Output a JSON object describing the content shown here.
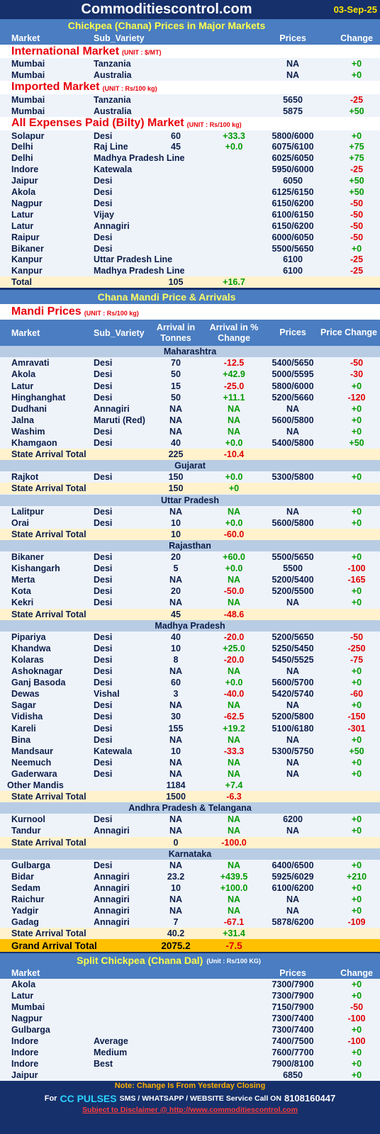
{
  "header": {
    "site": "Commoditiescontrol.com",
    "date": "03-Sep-25"
  },
  "major": {
    "title": "Chickpea (Chana) Prices in Major Markets",
    "columns": [
      "Market",
      "Sub_Variety",
      "Prices",
      "Change"
    ],
    "groups": [
      {
        "name": "International Market",
        "unit": "(UNIT : $/MT)",
        "rows": [
          {
            "m": "Mumbai",
            "v": "Tanzania",
            "p": "NA",
            "c": "+0"
          },
          {
            "m": "Mumbai",
            "v": "Australia",
            "p": "NA",
            "c": "+0"
          }
        ]
      },
      {
        "name": "Imported Market",
        "unit": "(UNIT : Rs/100 kg)",
        "rows": [
          {
            "m": "Mumbai",
            "v": "Tanzania",
            "p": "5650",
            "c": "-25"
          },
          {
            "m": "Mumbai",
            "v": "Australia",
            "p": "5875",
            "c": "+50"
          }
        ]
      },
      {
        "name": "All Expenses Paid (Bilty) Market",
        "unit": "(UNIT : Rs/100 kg)",
        "rows": [
          {
            "m": "Solapur",
            "v": "Desi",
            "a": "60",
            "ac": "+33.3",
            "p": "5800/6000",
            "c": "+0"
          },
          {
            "m": "Delhi",
            "v": "Raj Line",
            "a": "45",
            "ac": "+0.0",
            "p": "6075/6100",
            "c": "+75"
          },
          {
            "m": "Delhi",
            "v": "Madhya Pradesh Line",
            "p": "6025/6050",
            "c": "+75"
          },
          {
            "m": "Indore",
            "v": "Katewala",
            "p": "5950/6000",
            "c": "-25"
          },
          {
            "m": "Jaipur",
            "v": "Desi",
            "p": "6050",
            "c": "+50"
          },
          {
            "m": "Akola",
            "v": "Desi",
            "p": "6125/6150",
            "c": "+50"
          },
          {
            "m": "Nagpur",
            "v": "Desi",
            "p": "6150/6200",
            "c": "-50"
          },
          {
            "m": "Latur",
            "v": "Vijay",
            "p": "6100/6150",
            "c": "-50"
          },
          {
            "m": "Latur",
            "v": "Annagiri",
            "p": "6150/6200",
            "c": "-50"
          },
          {
            "m": "Raipur",
            "v": "Desi",
            "p": "6000/6050",
            "c": "-50"
          },
          {
            "m": "Bikaner",
            "v": "Desi",
            "p": "5500/5650",
            "c": "+0"
          },
          {
            "m": "Kanpur",
            "v": "Uttar Pradesh Line",
            "p": "6100",
            "c": "-25"
          },
          {
            "m": "Kanpur",
            "v": "Madhya Pradesh Line",
            "p": "6100",
            "c": "-25"
          }
        ],
        "total": {
          "m": "Total",
          "a": "105",
          "ac": "+16.7"
        }
      }
    ]
  },
  "mandi": {
    "title": "Chana Mandi Price & Arrivals",
    "heading": "Mandi Prices",
    "unit": "(UNIT : Rs/100 kg)",
    "columns": [
      "Market",
      "Sub_Variety",
      "Arrival in Tonnes",
      "Arrival in % Change",
      "Prices",
      "Price Change"
    ],
    "states": [
      {
        "name": "Maharashtra",
        "rows": [
          {
            "m": "Amravati",
            "v": "Desi",
            "a": "70",
            "ac": "-12.5",
            "p": "5400/5650",
            "c": "-50"
          },
          {
            "m": "Akola",
            "v": "Desi",
            "a": "50",
            "ac": "+42.9",
            "p": "5000/5595",
            "c": "-30"
          },
          {
            "m": "Latur",
            "v": "Desi",
            "a": "15",
            "ac": "-25.0",
            "p": "5800/6000",
            "c": "+0"
          },
          {
            "m": "Hinghanghat",
            "v": "Desi",
            "a": "50",
            "ac": "+11.1",
            "p": "5200/5660",
            "c": "-120"
          },
          {
            "m": "Dudhani",
            "v": "Annagiri",
            "a": "NA",
            "ac": "NA",
            "p": "NA",
            "c": "+0"
          },
          {
            "m": "Jalna",
            "v": "Maruti (Red)",
            "a": "NA",
            "ac": "NA",
            "p": "5600/5800",
            "c": "+0"
          },
          {
            "m": "Washim",
            "v": "Desi",
            "a": "NA",
            "ac": "NA",
            "p": "NA",
            "c": "+0"
          },
          {
            "m": "Khamgaon",
            "v": "Desi",
            "a": "40",
            "ac": "+0.0",
            "p": "5400/5800",
            "c": "+50"
          }
        ],
        "total": {
          "m": "State Arrival Total",
          "a": "225",
          "ac": "-10.4"
        }
      },
      {
        "name": "Gujarat",
        "rows": [
          {
            "m": "Rajkot",
            "v": "Desi",
            "a": "150",
            "ac": "+0.0",
            "p": "5300/5800",
            "c": "+0"
          }
        ],
        "total": {
          "m": "State Arrival Total",
          "a": "150",
          "ac": "+0"
        }
      },
      {
        "name": "Uttar Pradesh",
        "rows": [
          {
            "m": "Lalitpur",
            "v": "Desi",
            "a": "NA",
            "ac": "NA",
            "p": "NA",
            "c": "+0"
          },
          {
            "m": "Orai",
            "v": "Desi",
            "a": "10",
            "ac": "+0.0",
            "p": "5600/5800",
            "c": "+0"
          }
        ],
        "total": {
          "m": "State Arrival Total",
          "a": "10",
          "ac": "-60.0"
        }
      },
      {
        "name": "Rajasthan",
        "rows": [
          {
            "m": "Bikaner",
            "v": "Desi",
            "a": "20",
            "ac": "+60.0",
            "p": "5500/5650",
            "c": "+0"
          },
          {
            "m": "Kishangarh",
            "v": "Desi",
            "a": "5",
            "ac": "+0.0",
            "p": "5500",
            "c": "-100"
          },
          {
            "m": "Merta",
            "v": "Desi",
            "a": "NA",
            "ac": "NA",
            "p": "5200/5400",
            "c": "-165"
          },
          {
            "m": "Kota",
            "v": "Desi",
            "a": "20",
            "ac": "-50.0",
            "p": "5200/5500",
            "c": "+0"
          },
          {
            "m": "Kekri",
            "v": "Desi",
            "a": "NA",
            "ac": "NA",
            "p": "NA",
            "c": "+0"
          }
        ],
        "total": {
          "m": "State Arrival Total",
          "a": "45",
          "ac": "-48.6"
        }
      },
      {
        "name": "Madhya Pradesh",
        "rows": [
          {
            "m": "Pipariya",
            "v": "Desi",
            "a": "40",
            "ac": "-20.0",
            "p": "5200/5650",
            "c": "-50"
          },
          {
            "m": "Khandwa",
            "v": "Desi",
            "a": "10",
            "ac": "+25.0",
            "p": "5250/5450",
            "c": "-250"
          },
          {
            "m": "Kolaras",
            "v": "Desi",
            "a": "8",
            "ac": "-20.0",
            "p": "5450/5525",
            "c": "-75"
          },
          {
            "m": "Ashoknagar",
            "v": "Desi",
            "a": "NA",
            "ac": "NA",
            "p": "NA",
            "c": "+0"
          },
          {
            "m": "Ganj Basoda",
            "v": "Desi",
            "a": "60",
            "ac": "+0.0",
            "p": "5600/5700",
            "c": "+0"
          },
          {
            "m": "Dewas",
            "v": "Vishal",
            "a": "3",
            "ac": "-40.0",
            "p": "5420/5740",
            "c": "-60"
          },
          {
            "m": "Sagar",
            "v": "Desi",
            "a": "NA",
            "ac": "NA",
            "p": "NA",
            "c": "+0"
          },
          {
            "m": "Vidisha",
            "v": "Desi",
            "a": "30",
            "ac": "-62.5",
            "p": "5200/5800",
            "c": "-150"
          },
          {
            "m": "Kareli",
            "v": "Desi",
            "a": "155",
            "ac": "+19.2",
            "p": "5100/6180",
            "c": "-301"
          },
          {
            "m": "Bina",
            "v": "Desi",
            "a": "NA",
            "ac": "NA",
            "p": "NA",
            "c": "+0"
          },
          {
            "m": "Mandsaur",
            "v": "Katewala",
            "a": "10",
            "ac": "-33.3",
            "p": "5300/5750",
            "c": "+50"
          },
          {
            "m": "Neemuch",
            "v": "Desi",
            "a": "NA",
            "ac": "NA",
            "p": "NA",
            "c": "+0"
          },
          {
            "m": "Gaderwara",
            "v": "Desi",
            "a": "NA",
            "ac": "NA",
            "p": "NA",
            "c": "+0"
          },
          {
            "m": "Other Mandis",
            "a": "1184",
            "ac": "+7.4"
          }
        ],
        "total": {
          "m": "State Arrival Total",
          "a": "1500",
          "ac": "-6.3"
        }
      },
      {
        "name": "Andhra Pradesh & Telangana",
        "rows": [
          {
            "m": "Kurnool",
            "v": "Desi",
            "a": "NA",
            "ac": "NA",
            "p": "6200",
            "c": "+0"
          },
          {
            "m": "Tandur",
            "v": "Annagiri",
            "a": "NA",
            "ac": "NA",
            "p": "NA",
            "c": "+0"
          }
        ],
        "total": {
          "m": "State Arrival Total",
          "a": "0",
          "ac": "-100.0"
        }
      },
      {
        "name": "Karnataka",
        "rows": [
          {
            "m": "Gulbarga",
            "v": "Desi",
            "a": "NA",
            "ac": "NA",
            "p": "6400/6500",
            "c": "+0"
          },
          {
            "m": "Bidar",
            "v": "Annagiri",
            "a": "23.2",
            "ac": "+439.5",
            "p": "5925/6029",
            "c": "+210"
          },
          {
            "m": "Sedam",
            "v": "Annagiri",
            "a": "10",
            "ac": "+100.0",
            "p": "6100/6200",
            "c": "+0"
          },
          {
            "m": "Raichur",
            "v": "Annagiri",
            "a": "NA",
            "ac": "NA",
            "p": "NA",
            "c": "+0"
          },
          {
            "m": "Yadgir",
            "v": "Annagiri",
            "a": "NA",
            "ac": "NA",
            "p": "NA",
            "c": "+0"
          },
          {
            "m": "Gadag",
            "v": "Annagiri",
            "a": "7",
            "ac": "-67.1",
            "p": "5878/6200",
            "c": "-109"
          }
        ],
        "total": {
          "m": "State Arrival Total",
          "a": "40.2",
          "ac": "+31.4"
        }
      }
    ],
    "grand_total": {
      "m": "Grand Arrival Total",
      "a": "2075.2",
      "ac": "-7.5"
    }
  },
  "dal": {
    "title": "Split Chickpea (Chana Dal)",
    "unit": "(Unit : Rs/100 KG)",
    "columns": [
      "Market",
      "Prices",
      "Change"
    ],
    "rows": [
      {
        "m": "Akola",
        "p": "7300/7900",
        "c": "+0"
      },
      {
        "m": "Latur",
        "p": "7300/7900",
        "c": "+0"
      },
      {
        "m": "Mumbai",
        "p": "7150/7900",
        "c": "-50"
      },
      {
        "m": "Nagpur",
        "p": "7300/7400",
        "c": "-100"
      },
      {
        "m": "Gulbarga",
        "p": "7300/7400",
        "c": "+0"
      },
      {
        "m": "Indore",
        "v": "Average",
        "p": "7400/7500",
        "c": "-100"
      },
      {
        "m": "Indore",
        "v": "Medium",
        "p": "7600/7700",
        "c": "+0"
      },
      {
        "m": "Indore",
        "v": "Best",
        "p": "7900/8100",
        "c": "+0"
      },
      {
        "m": "Jaipur",
        "p": "6850",
        "c": "+0"
      }
    ]
  },
  "footer": {
    "note": "Note: Change Is From Yesterday Closing",
    "for": "For",
    "brand": "CC PULSES",
    "service": "SMS / WHATSAPP / WEBSITE Service Call  ON",
    "phone": "8108160447",
    "disclaimer": "Subject to Disclaimer @  http://www.commoditiescontrol.com"
  }
}
